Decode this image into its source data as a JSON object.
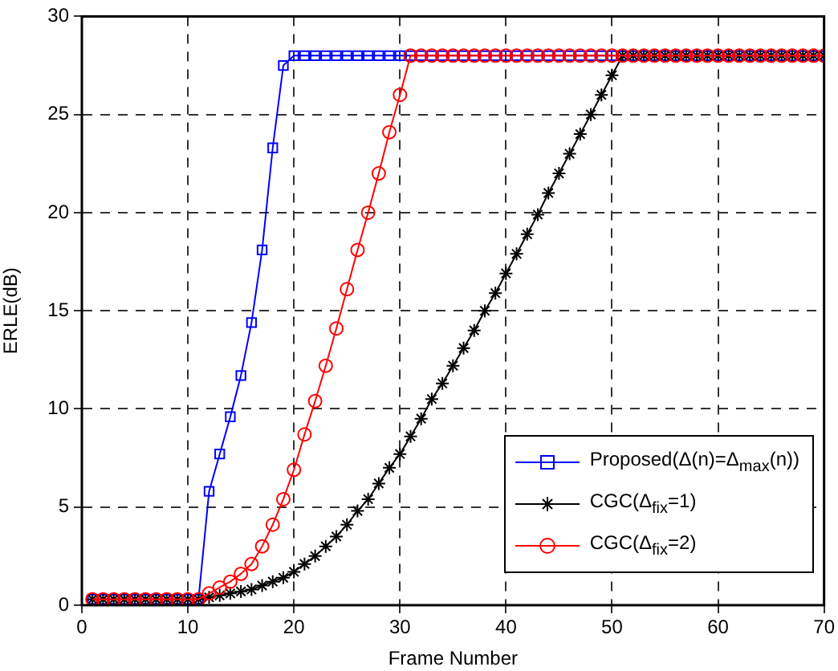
{
  "chart_data": {
    "type": "line",
    "xlabel": "Frame Number",
    "ylabel": "ERLE(dB)",
    "x": [
      1,
      2,
      3,
      4,
      5,
      6,
      7,
      8,
      9,
      10,
      11,
      12,
      13,
      14,
      15,
      16,
      17,
      18,
      19,
      20,
      21,
      22,
      23,
      24,
      25,
      26,
      27,
      28,
      29,
      30,
      31,
      32,
      33,
      34,
      35,
      36,
      37,
      38,
      39,
      40,
      41,
      42,
      43,
      44,
      45,
      46,
      47,
      48,
      49,
      50,
      51,
      52,
      53,
      54,
      55,
      56,
      57,
      58,
      59,
      60,
      61,
      62,
      63,
      64,
      65,
      66,
      67,
      68,
      69,
      70
    ],
    "series": [
      {
        "name": "Proposed(Δ(n)=Δ$_{max}$(n))",
        "color": "#0000ff",
        "marker": "square",
        "values": [
          0.3,
          0.3,
          0.3,
          0.3,
          0.3,
          0.3,
          0.3,
          0.3,
          0.3,
          0.3,
          0.3,
          5.8,
          7.7,
          9.6,
          11.7,
          14.4,
          18.1,
          23.3,
          27.5,
          28,
          28,
          28,
          28,
          28,
          28,
          28,
          28,
          28,
          28,
          28,
          28,
          28,
          28,
          28,
          28,
          28,
          28,
          28,
          28,
          28,
          28,
          28,
          28,
          28,
          28,
          28,
          28,
          28,
          28,
          28,
          28,
          28,
          28,
          28,
          28,
          28,
          28,
          28,
          28,
          28,
          28,
          28,
          28,
          28,
          28,
          28,
          28,
          28,
          28,
          28
        ]
      },
      {
        "name": "CGC(Δ$_{fix}$=1)",
        "color": "#000000",
        "marker": "cross",
        "values": [
          0.3,
          0.3,
          0.3,
          0.3,
          0.3,
          0.3,
          0.3,
          0.3,
          0.3,
          0.3,
          0.3,
          0.4,
          0.5,
          0.6,
          0.7,
          0.8,
          1.0,
          1.2,
          1.4,
          1.7,
          2.1,
          2.5,
          3.0,
          3.5,
          4.1,
          4.8,
          5.4,
          6.2,
          7.0,
          7.7,
          8.6,
          9.5,
          10.5,
          11.3,
          12.2,
          13.1,
          14.0,
          15.0,
          15.9,
          16.9,
          17.9,
          18.9,
          19.9,
          21.0,
          22.0,
          23.0,
          24.0,
          25.0,
          26.0,
          27.0,
          28,
          28,
          28,
          28,
          28,
          28,
          28,
          28,
          28,
          28,
          28,
          28,
          28,
          28,
          28,
          28,
          28,
          28,
          28,
          28
        ]
      },
      {
        "name": "CGC(Δ$_{fix}$=2)",
        "color": "#ff0000",
        "marker": "circle",
        "values": [
          0.3,
          0.3,
          0.3,
          0.3,
          0.3,
          0.3,
          0.3,
          0.3,
          0.3,
          0.3,
          0.3,
          0.6,
          0.9,
          1.2,
          1.6,
          2.1,
          3.0,
          4.1,
          5.4,
          6.9,
          8.7,
          10.4,
          12.2,
          14.1,
          16.1,
          18.1,
          20.0,
          22.0,
          24.1,
          26.0,
          28,
          28,
          28,
          28,
          28,
          28,
          28,
          28,
          28,
          28,
          28,
          28,
          28,
          28,
          28,
          28,
          28,
          28,
          28,
          28,
          28,
          28,
          28,
          28,
          28,
          28,
          28,
          28,
          28,
          28,
          28,
          28,
          28,
          28,
          28,
          28,
          28,
          28,
          28,
          28
        ]
      }
    ],
    "xlim": [
      0,
      70
    ],
    "xticks": [
      0,
      10,
      20,
      30,
      40,
      50,
      60,
      70
    ],
    "ylim": [
      0,
      30
    ],
    "yticks": [
      0,
      5,
      10,
      15,
      20,
      25,
      30
    ],
    "grid": true,
    "line_style": "solid",
    "legend": "bottom right"
  }
}
